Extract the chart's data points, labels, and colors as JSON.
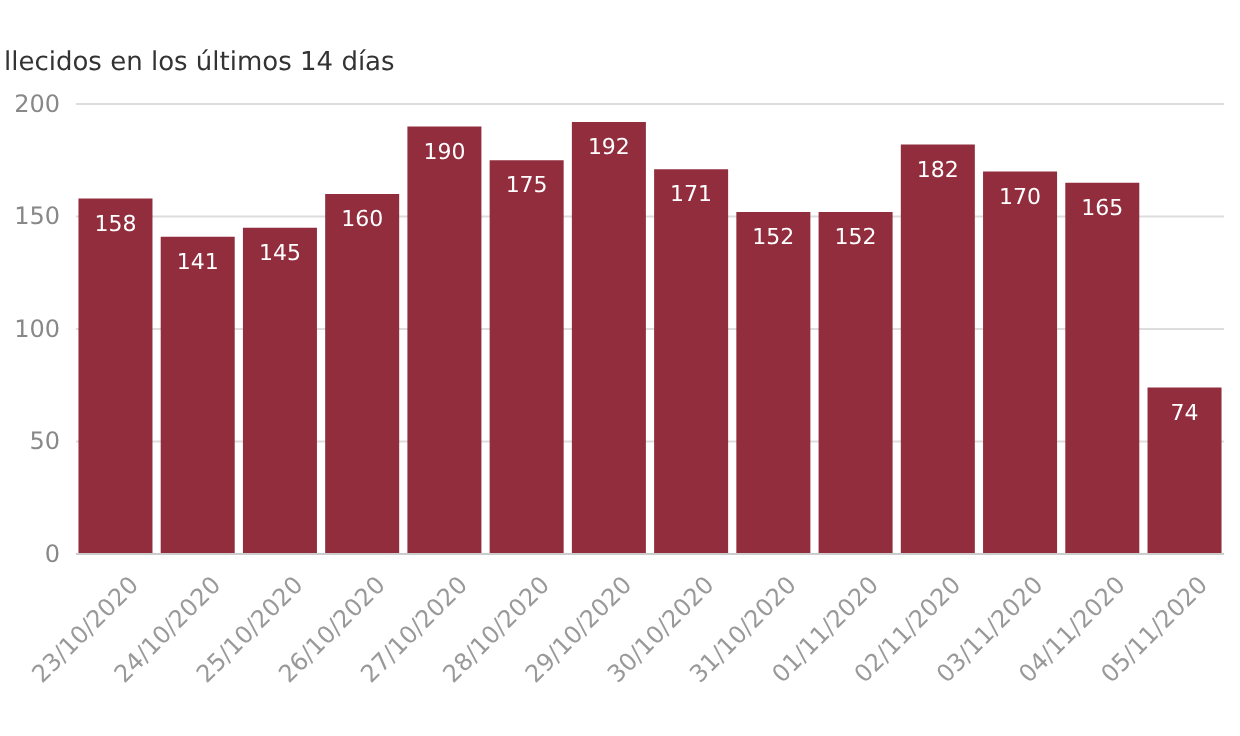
{
  "chart_data": {
    "type": "bar",
    "title": "llecidos en los últimos 14 días",
    "categories": [
      "23/10/2020",
      "24/10/2020",
      "25/10/2020",
      "26/10/2020",
      "27/10/2020",
      "28/10/2020",
      "29/10/2020",
      "30/10/2020",
      "31/10/2020",
      "01/11/2020",
      "02/11/2020",
      "03/11/2020",
      "04/11/2020",
      "05/11/2020"
    ],
    "values": [
      158,
      141,
      145,
      160,
      190,
      175,
      192,
      171,
      152,
      152,
      182,
      170,
      165,
      74
    ],
    "color": "#922d3e",
    "ylim": [
      0,
      200
    ],
    "yticks": [
      0,
      50,
      100,
      150,
      200
    ],
    "grid": "y",
    "data_labels": true
  }
}
